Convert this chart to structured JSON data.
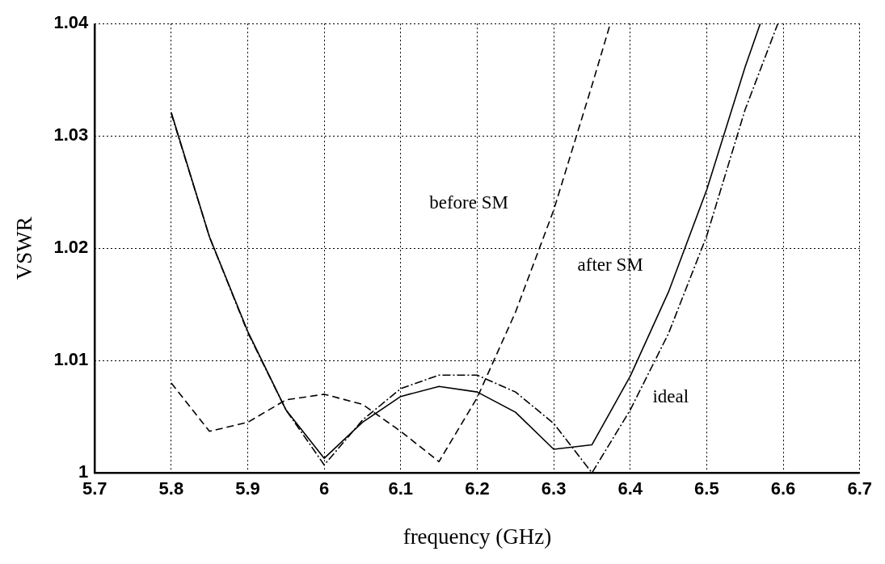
{
  "chart_data": {
    "type": "line",
    "xlabel": "frequency (GHz)",
    "ylabel": "VSWR",
    "xlim": [
      5.7,
      6.7
    ],
    "xticks": [
      5.7,
      5.8,
      5.9,
      6,
      6.1,
      6.2,
      6.3,
      6.4,
      6.5,
      6.6,
      6.7
    ],
    "ylim": [
      1,
      1.04
    ],
    "yticks": [
      1,
      1.01,
      1.02,
      1.03,
      1.04
    ],
    "grid": true,
    "marker": "none",
    "series": [
      {
        "name": "before SM",
        "color": "#000000",
        "line_style": "dashed",
        "x": [
          5.8,
          5.85,
          5.9,
          5.95,
          6.0,
          6.05,
          6.1,
          6.15,
          6.2,
          6.25,
          6.3,
          6.35,
          6.374
        ],
        "values": [
          1.008,
          1.0037,
          1.0045,
          1.0065,
          1.007,
          1.0061,
          1.0037,
          1.001,
          1.0067,
          1.0143,
          1.0234,
          1.0345,
          1.04
        ]
      },
      {
        "name": "after SM",
        "color": "#000000",
        "line_style": "solid",
        "x": [
          5.8,
          5.85,
          5.9,
          5.95,
          6.0,
          6.05,
          6.1,
          6.15,
          6.2,
          6.25,
          6.3,
          6.35,
          6.4,
          6.45,
          6.5,
          6.55,
          6.57
        ],
        "values": [
          1.0321,
          1.021,
          1.0126,
          1.0056,
          1.0013,
          1.0045,
          1.0068,
          1.0077,
          1.0072,
          1.0054,
          1.0021,
          1.0025,
          1.0086,
          1.0161,
          1.0252,
          1.0361,
          1.04
        ]
      },
      {
        "name": "ideal",
        "color": "#000000",
        "line_style": "dashdot",
        "x": [
          5.8,
          5.85,
          5.9,
          5.95,
          6.0,
          6.05,
          6.1,
          6.15,
          6.2,
          6.25,
          6.3,
          6.35,
          6.4,
          6.45,
          6.5,
          6.55,
          6.593
        ],
        "values": [
          1.032,
          1.021,
          1.0125,
          1.0056,
          1.0007,
          1.0047,
          1.0075,
          1.0087,
          1.0087,
          1.0072,
          1.0044,
          1.0,
          1.0056,
          1.0124,
          1.0211,
          1.0323,
          1.04
        ]
      }
    ]
  }
}
